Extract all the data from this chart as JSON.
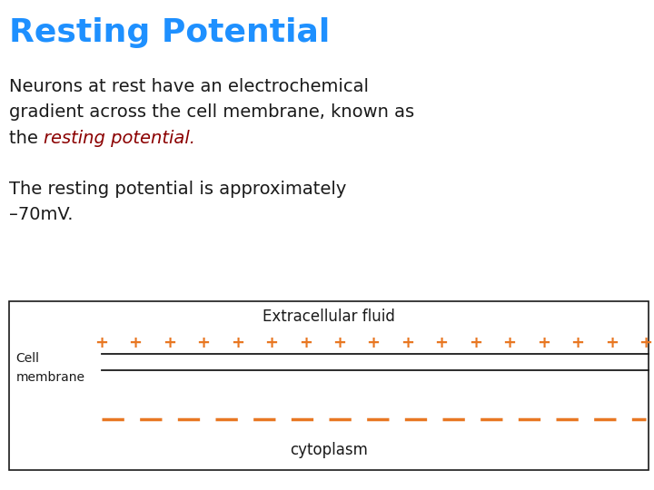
{
  "title": "Resting Potential",
  "title_color": "#1E90FF",
  "title_fontsize": 26,
  "body_text_color": "#1a1a1a",
  "resting_potential_color": "#8B0000",
  "body_fontsize": 14,
  "body2_text_line1": "The resting potential is approximately",
  "body2_text_line2": "–70mV.",
  "diagram_box_color": "#1a1a1a",
  "diagram_bg": "#ffffff",
  "extracellular_label": "Extracellular fluid",
  "extracellular_color": "#1a1a1a",
  "plus_color": "#E87722",
  "plus_symbol": "+",
  "plus_count": 17,
  "solid_line_color": "#1a1a1a",
  "dashed_line_color": "#E87722",
  "cell_membrane_label_line1": "Cell",
  "cell_membrane_label_line2": "membrane",
  "cytoplasm_label": "cytoplasm",
  "cytoplasm_color": "#1a1a1a"
}
